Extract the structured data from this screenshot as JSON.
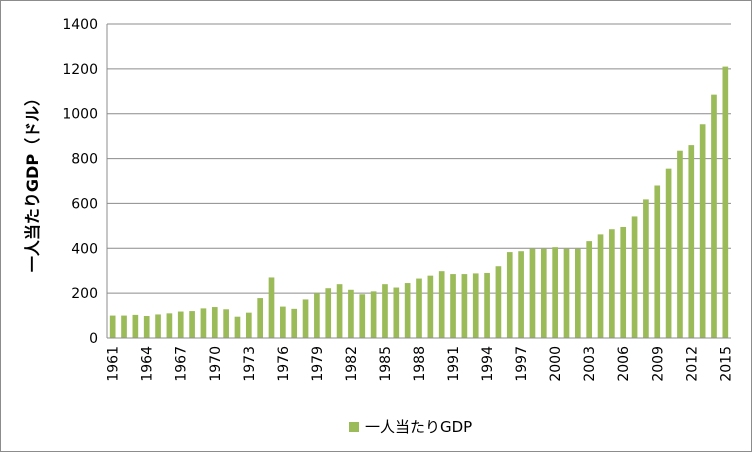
{
  "chart_data": {
    "type": "bar",
    "title": "",
    "ylabel": "一人当たりGDP（ドル）",
    "xlabel": "",
    "ylim": [
      0,
      1400
    ],
    "yticks": [
      0,
      200,
      400,
      600,
      800,
      1000,
      1200,
      1400
    ],
    "grid": "horizontal",
    "legend_position": "bottom",
    "bar_color": "#9bbb59",
    "categories": [
      "1961",
      "1962",
      "1963",
      "1964",
      "1965",
      "1966",
      "1967",
      "1968",
      "1969",
      "1970",
      "1971",
      "1972",
      "1973",
      "1974",
      "1975",
      "1976",
      "1977",
      "1978",
      "1979",
      "1980",
      "1981",
      "1982",
      "1983",
      "1984",
      "1985",
      "1986",
      "1987",
      "1988",
      "1989",
      "1990",
      "1991",
      "1992",
      "1993",
      "1994",
      "1995",
      "1996",
      "1997",
      "1998",
      "1999",
      "2000",
      "2001",
      "2002",
      "2003",
      "2004",
      "2005",
      "2006",
      "2007",
      "2008",
      "2009",
      "2010",
      "2011",
      "2012",
      "2013",
      "2014",
      "2015"
    ],
    "xtick_labels": [
      "1961",
      "1964",
      "1967",
      "1970",
      "1973",
      "1976",
      "1979",
      "1982",
      "1985",
      "1988",
      "1991",
      "1994",
      "1997",
      "2000",
      "2003",
      "2006",
      "2009",
      "2012",
      "2015"
    ],
    "series": [
      {
        "name": "一人当たりGDP",
        "values": [
          100,
          100,
          103,
          98,
          105,
          110,
          118,
          120,
          132,
          138,
          128,
          95,
          113,
          178,
          270,
          140,
          130,
          172,
          200,
          222,
          240,
          215,
          195,
          208,
          240,
          225,
          245,
          265,
          278,
          298,
          285,
          285,
          288,
          290,
          320,
          383,
          387,
          398,
          398,
          405,
          398,
          398,
          432,
          462,
          485,
          495,
          542,
          618,
          680,
          755,
          835,
          860,
          953,
          1085,
          1210
        ]
      }
    ]
  }
}
